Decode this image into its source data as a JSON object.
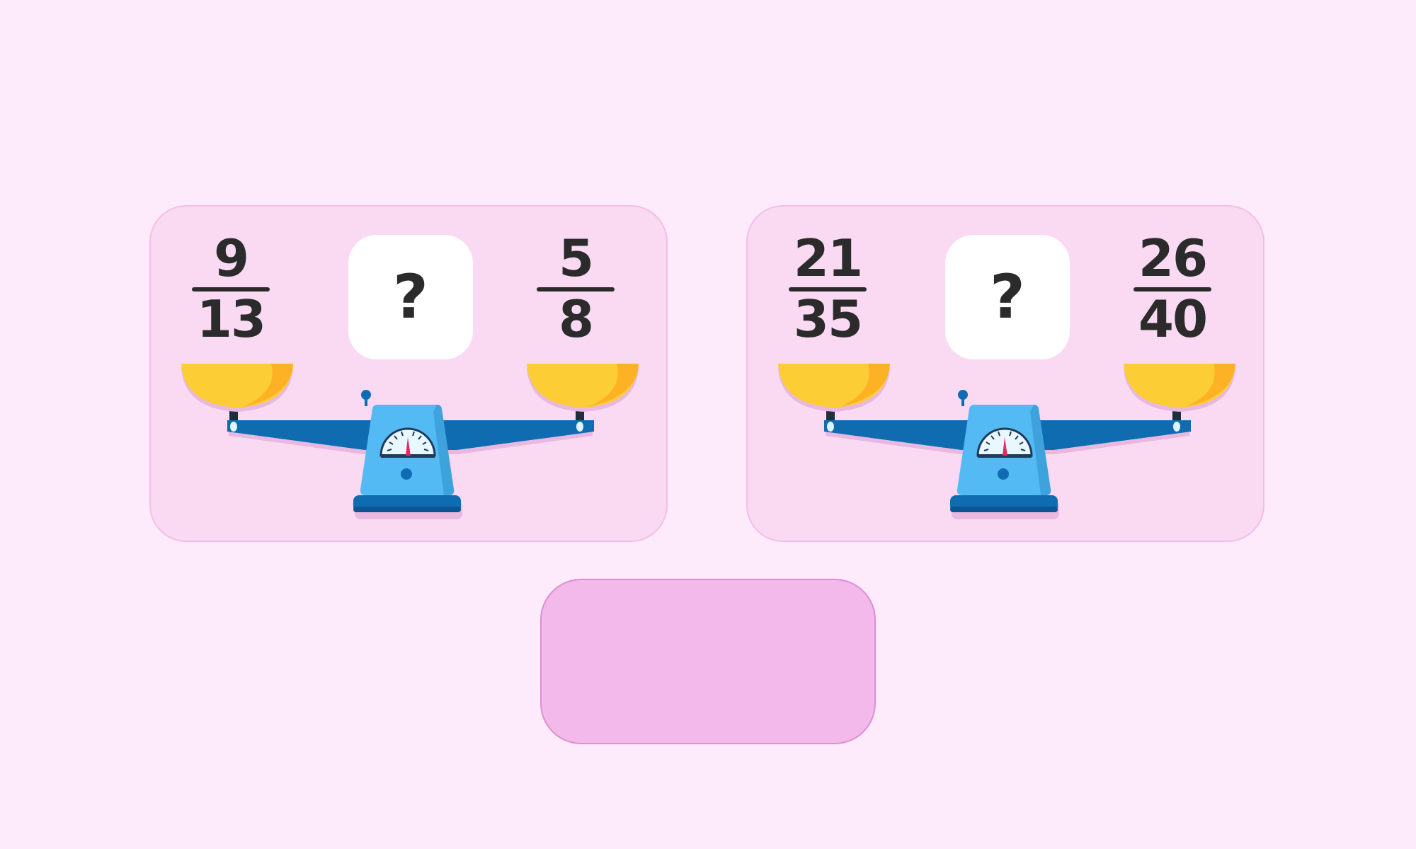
{
  "problems": [
    {
      "left": {
        "numerator": "9",
        "denominator": "13"
      },
      "comparison": "?",
      "right": {
        "numerator": "5",
        "denominator": "8"
      }
    },
    {
      "left": {
        "numerator": "21",
        "denominator": "35"
      },
      "comparison": "?",
      "right": {
        "numerator": "26",
        "denominator": "40"
      }
    }
  ],
  "answer_slot": {
    "text": ""
  },
  "colors": {
    "background": "#fdeafb",
    "card": "#fad9f3",
    "pan": "#fdcd35",
    "pan_shade": "#fdb124",
    "beam": "#0f6cb1",
    "scale_body": "#53baf3",
    "needle": "#e8265d",
    "answer_slot": "#f3b9eb"
  },
  "icons": [
    "balance-scale-icon",
    "scale-dial-icon"
  ]
}
